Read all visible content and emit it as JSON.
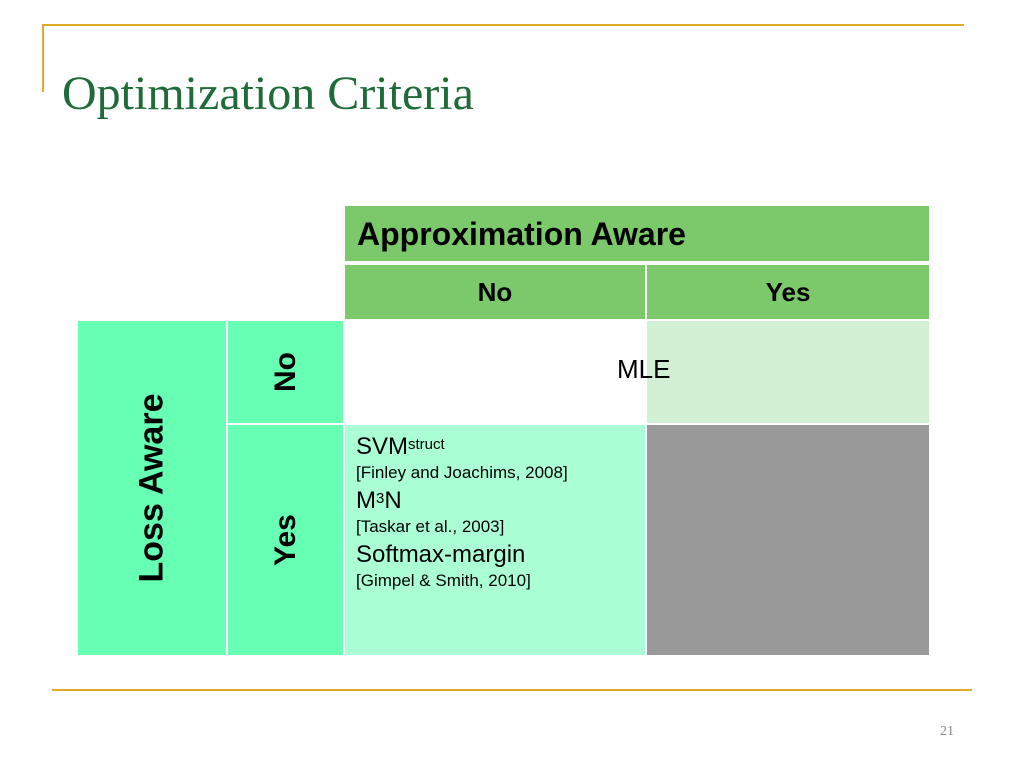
{
  "slide": {
    "title": "Optimization Criteria",
    "page_number": "21"
  },
  "table": {
    "col_group_header": "Approximation Aware",
    "col_headers": [
      "No",
      "Yes"
    ],
    "row_group_header": "Loss Aware",
    "row_headers": [
      "No",
      "Yes"
    ],
    "cell_no_no": "MLE",
    "cell_yes_no": {
      "methods": [
        {
          "name": "SVM",
          "superscript": "struct",
          "ref": "[Finley and Joachims, 2008]"
        },
        {
          "name_pre": "M",
          "superscript": "3",
          "name_post": "N",
          "ref": "[Taskar et al., 2003]"
        },
        {
          "name": "Softmax-margin",
          "ref": "[Gimpel & Smith, 2010]"
        }
      ]
    },
    "colors": {
      "header_green": "#7cc96c",
      "row_header_green": "#66ffb3",
      "light_green_cell": "#d2eed3",
      "mint_cell": "#aaffd4",
      "gray_cell": "#999999"
    }
  },
  "frame_color": "#e0a82e",
  "title_color": "#1f6b3a"
}
